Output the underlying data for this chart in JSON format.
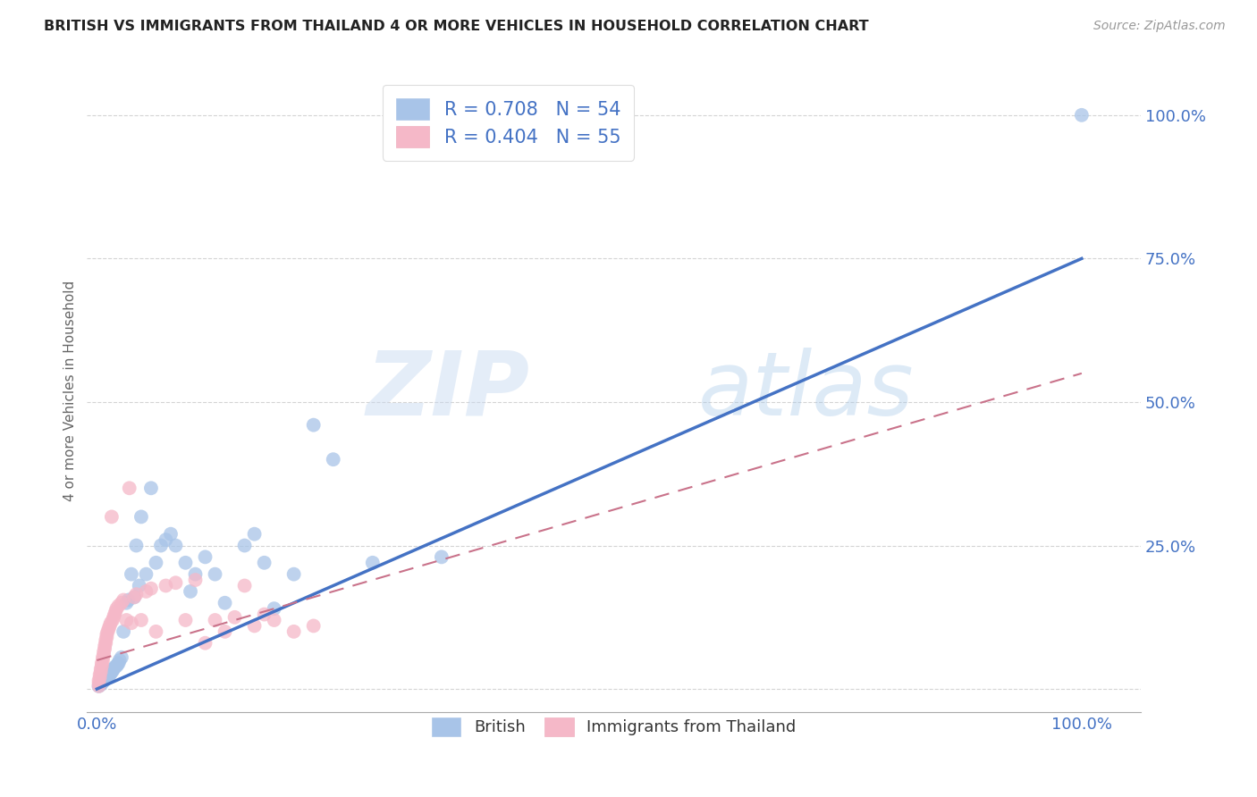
{
  "title": "BRITISH VS IMMIGRANTS FROM THAILAND 4 OR MORE VEHICLES IN HOUSEHOLD CORRELATION CHART",
  "source": "Source: ZipAtlas.com",
  "ylabel": "4 or more Vehicles in Household",
  "x_ticks": [
    0.0,
    0.2,
    0.4,
    0.6,
    0.8,
    1.0
  ],
  "y_ticks": [
    0.0,
    0.25,
    0.5,
    0.75,
    1.0
  ],
  "xlim": [
    -0.01,
    1.06
  ],
  "ylim": [
    -0.04,
    1.08
  ],
  "british_R": 0.708,
  "british_N": 54,
  "thailand_R": 0.404,
  "thailand_N": 55,
  "british_color": "#a8c4e8",
  "thailand_color": "#f5b8c8",
  "british_line_color": "#4472c4",
  "thailand_line_color": "#c9728a",
  "grid_color": "#d0d0d0",
  "background_color": "#ffffff",
  "legend_label_british": "British",
  "legend_label_thailand": "Immigrants from Thailand",
  "watermark_zip": "ZIP",
  "watermark_atlas": "atlas",
  "british_x": [
    0.002,
    0.003,
    0.004,
    0.005,
    0.005,
    0.006,
    0.007,
    0.007,
    0.008,
    0.009,
    0.01,
    0.012,
    0.013,
    0.014,
    0.015,
    0.016,
    0.017,
    0.018,
    0.02,
    0.021,
    0.022,
    0.023,
    0.025,
    0.027,
    0.03,
    0.032,
    0.035,
    0.038,
    0.04,
    0.043,
    0.045,
    0.05,
    0.055,
    0.06,
    0.065,
    0.07,
    0.075,
    0.08,
    0.09,
    0.095,
    0.1,
    0.11,
    0.12,
    0.13,
    0.15,
    0.16,
    0.17,
    0.18,
    0.2,
    0.22,
    0.24,
    0.28,
    0.35,
    1.0
  ],
  "british_y": [
    0.005,
    0.007,
    0.008,
    0.01,
    0.012,
    0.013,
    0.014,
    0.015,
    0.016,
    0.018,
    0.02,
    0.022,
    0.025,
    0.027,
    0.03,
    0.032,
    0.035,
    0.038,
    0.04,
    0.043,
    0.045,
    0.05,
    0.055,
    0.1,
    0.15,
    0.155,
    0.2,
    0.16,
    0.25,
    0.18,
    0.3,
    0.2,
    0.35,
    0.22,
    0.25,
    0.26,
    0.27,
    0.25,
    0.22,
    0.17,
    0.2,
    0.23,
    0.2,
    0.15,
    0.25,
    0.27,
    0.22,
    0.14,
    0.2,
    0.46,
    0.4,
    0.22,
    0.23,
    1.0
  ],
  "thailand_x": [
    0.002,
    0.002,
    0.002,
    0.003,
    0.003,
    0.004,
    0.004,
    0.005,
    0.005,
    0.006,
    0.006,
    0.007,
    0.007,
    0.008,
    0.008,
    0.009,
    0.009,
    0.01,
    0.01,
    0.011,
    0.012,
    0.013,
    0.014,
    0.015,
    0.016,
    0.017,
    0.018,
    0.019,
    0.02,
    0.022,
    0.025,
    0.027,
    0.03,
    0.033,
    0.035,
    0.038,
    0.04,
    0.045,
    0.05,
    0.055,
    0.06,
    0.07,
    0.08,
    0.09,
    0.1,
    0.11,
    0.12,
    0.13,
    0.14,
    0.15,
    0.16,
    0.17,
    0.18,
    0.2,
    0.22
  ],
  "thailand_y": [
    0.005,
    0.01,
    0.015,
    0.02,
    0.025,
    0.03,
    0.035,
    0.04,
    0.045,
    0.05,
    0.055,
    0.06,
    0.065,
    0.07,
    0.075,
    0.08,
    0.085,
    0.09,
    0.095,
    0.1,
    0.105,
    0.11,
    0.115,
    0.3,
    0.12,
    0.125,
    0.13,
    0.135,
    0.14,
    0.145,
    0.15,
    0.155,
    0.12,
    0.35,
    0.115,
    0.16,
    0.165,
    0.12,
    0.17,
    0.175,
    0.1,
    0.18,
    0.185,
    0.12,
    0.19,
    0.08,
    0.12,
    0.1,
    0.125,
    0.18,
    0.11,
    0.13,
    0.12,
    0.1,
    0.11
  ]
}
